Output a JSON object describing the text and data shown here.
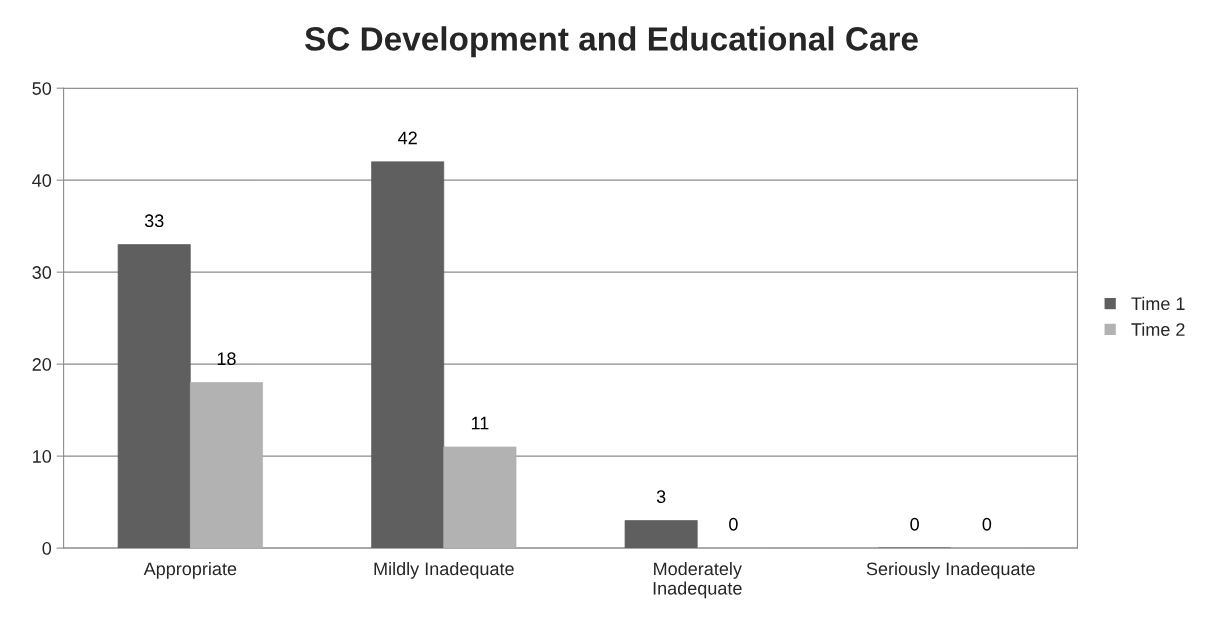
{
  "chart_data": {
    "type": "bar",
    "title": "SC Development and Educational Care",
    "categories": [
      "Appropriate",
      "Mildly Inadequate",
      "Moderately\nInadequate",
      "Seriously Inadequate"
    ],
    "series": [
      {
        "name": "Time 1",
        "color": "#5f5f5f",
        "values": [
          33,
          42,
          3,
          0
        ]
      },
      {
        "name": "Time 2",
        "color": "#b2b2b2",
        "values": [
          18,
          11,
          0,
          0
        ]
      }
    ],
    "ylim": [
      0,
      50
    ],
    "yticks": [
      0,
      10,
      20,
      30,
      40,
      50
    ],
    "grid": "y",
    "legend": "right",
    "data_labels": true
  }
}
